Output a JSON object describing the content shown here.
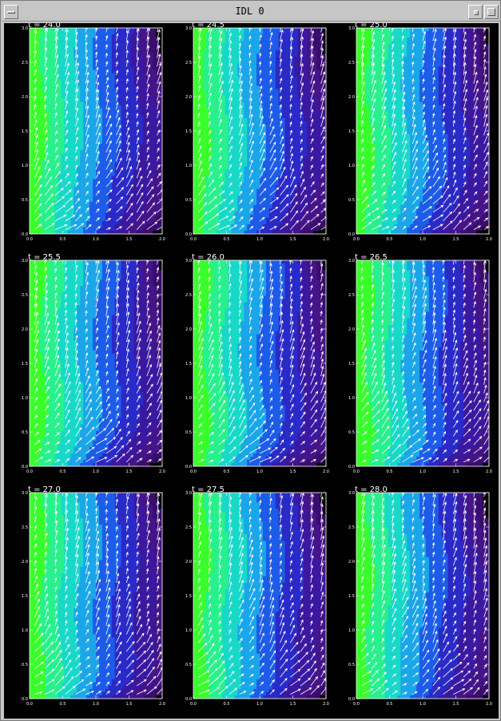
{
  "window": {
    "title": "IDL 0"
  },
  "chart_data": [
    {
      "type": "heatmap",
      "title": "t = 24.0",
      "xlim": [
        0,
        2
      ],
      "ylim": [
        0,
        3
      ],
      "xticks": [
        "0.0",
        "0.5",
        "1.0",
        "1.5",
        "2.0"
      ],
      "yticks": [
        "0.0",
        "0.5",
        "1.0",
        "1.5",
        "2.0",
        "2.5",
        "3.0"
      ]
    },
    {
      "type": "heatmap",
      "title": "t = 24.5",
      "xlim": [
        0,
        2
      ],
      "ylim": [
        0,
        3
      ],
      "xticks": [
        "0.0",
        "0.5",
        "1.0",
        "1.5",
        "2.0"
      ],
      "yticks": [
        "0.0",
        "0.5",
        "1.0",
        "1.5",
        "2.0",
        "2.5",
        "3.0"
      ]
    },
    {
      "type": "heatmap",
      "title": "t = 25.0",
      "xlim": [
        0,
        2
      ],
      "ylim": [
        0,
        3
      ],
      "xticks": [
        "0.0",
        "0.5",
        "1.0",
        "1.5",
        "2.0"
      ],
      "yticks": [
        "0.0",
        "0.5",
        "1.0",
        "1.5",
        "2.0",
        "2.5",
        "3.0"
      ]
    },
    {
      "type": "heatmap",
      "title": "t = 25.5",
      "xlim": [
        0,
        2
      ],
      "ylim": [
        0,
        3
      ],
      "xticks": [
        "0.0",
        "0.5",
        "1.0",
        "1.5",
        "2.0"
      ],
      "yticks": [
        "0.0",
        "0.5",
        "1.0",
        "1.5",
        "2.0",
        "2.5",
        "3.0"
      ]
    },
    {
      "type": "heatmap",
      "title": "t = 26.0",
      "xlim": [
        0,
        2
      ],
      "ylim": [
        0,
        3
      ],
      "xticks": [
        "0.0",
        "0.5",
        "1.0",
        "1.5",
        "2.0"
      ],
      "yticks": [
        "0.0",
        "0.5",
        "1.0",
        "1.5",
        "2.0",
        "2.5",
        "3.0"
      ]
    },
    {
      "type": "heatmap",
      "title": "t = 26.5",
      "xlim": [
        0,
        2
      ],
      "ylim": [
        0,
        3
      ],
      "xticks": [
        "0.0",
        "0.5",
        "1.0",
        "1.5",
        "2.0"
      ],
      "yticks": [
        "0.0",
        "0.5",
        "1.0",
        "1.5",
        "2.0",
        "2.5",
        "3.0"
      ]
    },
    {
      "type": "heatmap",
      "title": "t = 27.0",
      "xlim": [
        0,
        2
      ],
      "ylim": [
        0,
        3
      ],
      "xticks": [
        "0.0",
        "0.5",
        "1.0",
        "1.5",
        "2.0"
      ],
      "yticks": [
        "0.0",
        "0.5",
        "1.0",
        "1.5",
        "2.0",
        "2.5",
        "3.0"
      ]
    },
    {
      "type": "heatmap",
      "title": "t = 27.5",
      "xlim": [
        0,
        2
      ],
      "ylim": [
        0,
        3
      ],
      "xticks": [
        "0.0",
        "0.5",
        "1.0",
        "1.5",
        "2.0"
      ],
      "yticks": [
        "0.0",
        "0.5",
        "1.0",
        "1.5",
        "2.0",
        "2.5",
        "3.0"
      ]
    },
    {
      "type": "heatmap",
      "title": "t = 28.0",
      "xlim": [
        0,
        2
      ],
      "ylim": [
        0,
        3
      ],
      "xticks": [
        "0.0",
        "0.5",
        "1.0",
        "1.5",
        "2.0"
      ],
      "yticks": [
        "0.0",
        "0.5",
        "1.0",
        "1.5",
        "2.0",
        "2.5",
        "3.0"
      ]
    }
  ],
  "colors": {
    "background": "#000000",
    "bands": [
      "#38ff2a",
      "#28f08c",
      "#18d8c8",
      "#1aa6e8",
      "#1c5ce8",
      "#2a2ac8",
      "#3a18a0",
      "#441488",
      "#3a0c6c"
    ],
    "vectors": "#ffffff",
    "axes": "#ffffff"
  }
}
